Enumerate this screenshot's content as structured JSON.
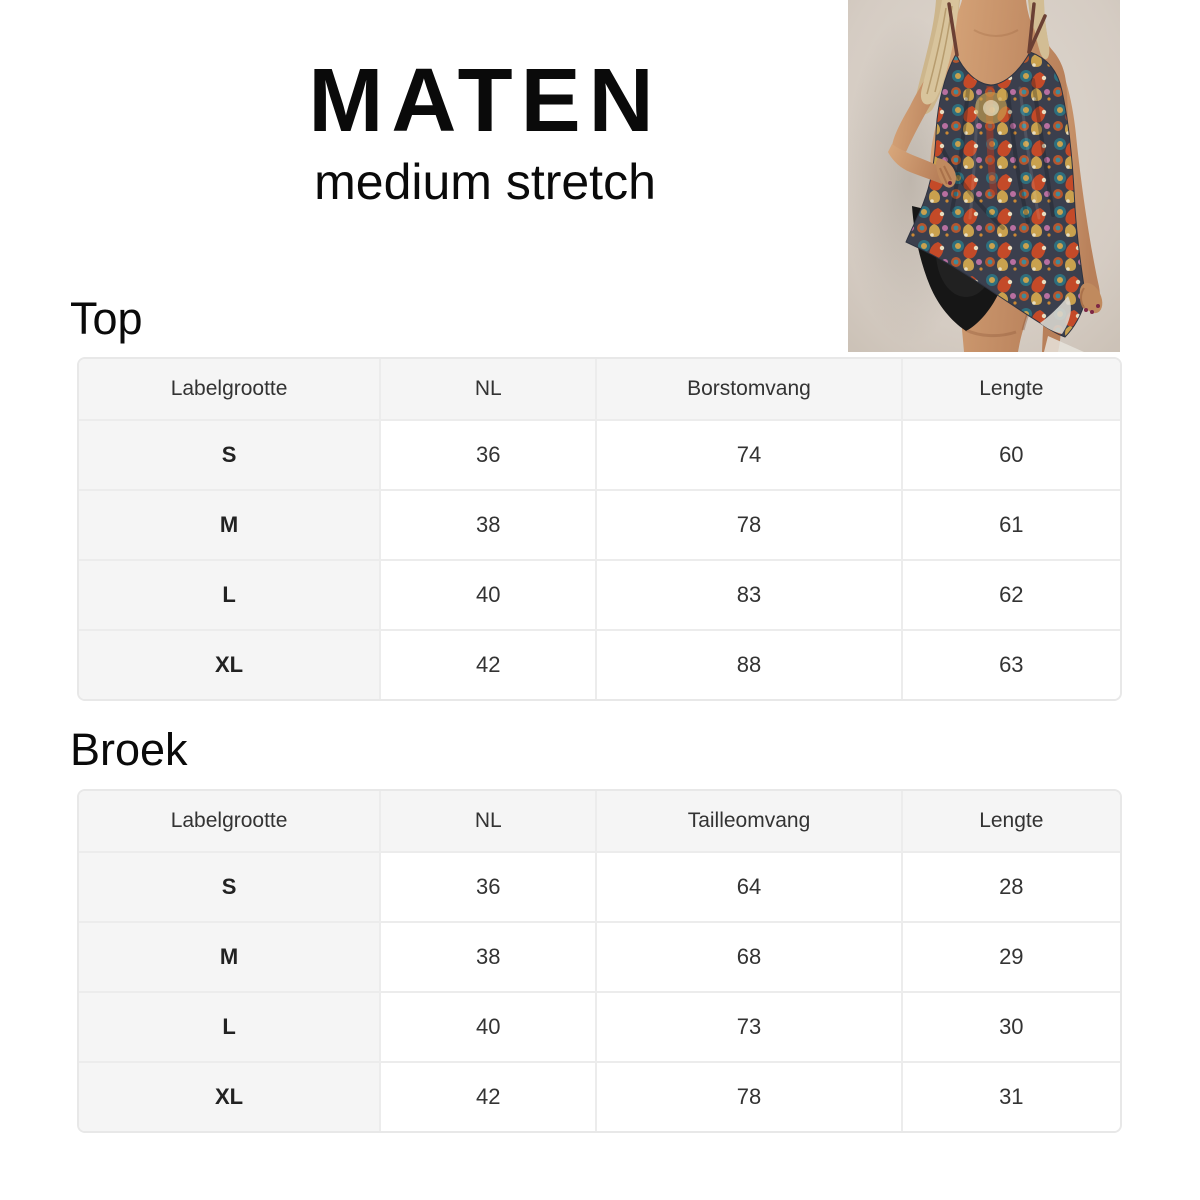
{
  "header": {
    "title": "MATEN",
    "subtitle": "medium stretch"
  },
  "product_photo": {
    "alt": "Model wearing a multicolor paisley print tankini top with black bikini bottom",
    "background_color": "#d7cfc7",
    "swimsuit_print_colors": [
      "#3e8a99",
      "#c44a28",
      "#c9a14e",
      "#b86fa0",
      "#3b3f4d",
      "#e8ddc0"
    ],
    "bottom_color": "#161616"
  },
  "sections": [
    {
      "id": "top",
      "heading": "Top",
      "table": {
        "headers": [
          "Labelgrootte",
          "NL",
          "Borstomvang",
          "Lengte"
        ],
        "rows": [
          [
            "S",
            "36",
            "74",
            "60"
          ],
          [
            "M",
            "38",
            "78",
            "61"
          ],
          [
            "L",
            "40",
            "83",
            "62"
          ],
          [
            "XL",
            "42",
            "88",
            "63"
          ]
        ]
      }
    },
    {
      "id": "broek",
      "heading": "Broek",
      "table": {
        "headers": [
          "Labelgrootte",
          "NL",
          "Tailleomvang",
          "Lengte"
        ],
        "rows": [
          [
            "S",
            "36",
            "64",
            "28"
          ],
          [
            "M",
            "38",
            "68",
            "29"
          ],
          [
            "L",
            "40",
            "73",
            "30"
          ],
          [
            "XL",
            "42",
            "78",
            "31"
          ]
        ]
      }
    }
  ]
}
